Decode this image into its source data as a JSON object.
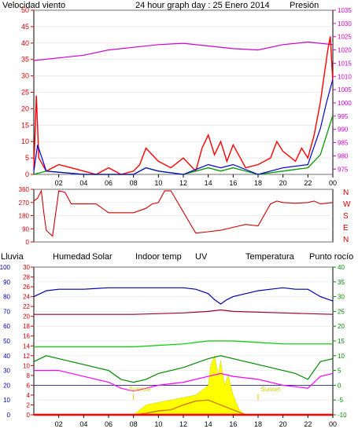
{
  "header": {
    "wind_label": "Velocidad viento",
    "title": "24 hour graph day : 25 Enero 2014",
    "pressure_label": "Presión"
  },
  "bottom_header": {
    "rain": "Lluvia",
    "humidity": "Humedad",
    "solar": "Solar",
    "indoor_temp": "Indoor temp",
    "uv": "UV",
    "temperature": "Temperatura",
    "dew_point": "Punto rocío"
  },
  "annotations": {
    "sunrise": "Sunrise",
    "sunset": "Sunset"
  },
  "colors": {
    "wind": "#ff0000",
    "gust_avg": "#0000cc",
    "green_wind": "#009900",
    "pressure": "#cc00cc",
    "direction": "#cc0000",
    "humidity": "#0000aa",
    "solar": "#00cc00",
    "indoor_temp": "#990033",
    "uv": "#cc6600",
    "temperature": "#008800",
    "dew_point": "#ff00ff",
    "rain": "#ff0000",
    "solar_fill": "#ffff00"
  },
  "chart_data": [
    {
      "type": "line",
      "title": "24 hour graph day : 25 Enero 2014",
      "x_ticks": [
        "02",
        "04",
        "06",
        "08",
        "10",
        "12",
        "14",
        "16",
        "18",
        "20",
        "22",
        "00"
      ],
      "x_hours": [
        2,
        4,
        6,
        8,
        10,
        12,
        14,
        16,
        18,
        20,
        22,
        24
      ],
      "x_range": [
        0,
        24
      ],
      "left_axis": {
        "label": "Velocidad viento",
        "ticks": [
          0,
          5,
          10,
          15,
          20,
          25,
          30,
          35,
          40,
          45,
          50
        ],
        "ylim": [
          0,
          50
        ]
      },
      "right_axis": {
        "label": "Presión",
        "ticks": [
          975,
          980,
          985,
          990,
          995,
          1000,
          1005,
          1010,
          1015,
          1020,
          1025,
          1030,
          1035
        ],
        "ylim": [
          973,
          1035
        ]
      },
      "series": [
        {
          "name": "Presión",
          "axis": "right",
          "x": [
            0,
            2,
            4,
            6,
            8,
            10,
            12,
            14,
            16,
            18,
            20,
            22,
            23,
            24
          ],
          "values": [
            1016,
            1017,
            1018,
            1020,
            1021,
            1022,
            1022.5,
            1021.5,
            1020.5,
            1020,
            1022,
            1023,
            1022.5,
            1022
          ]
        },
        {
          "axis": "left",
          "x": [
            0,
            0.2,
            0.4,
            1,
            2,
            3,
            4,
            5,
            6,
            7,
            8,
            8.5,
            9,
            10,
            11,
            12,
            13,
            13.5,
            14,
            14.5,
            15,
            15.5,
            16,
            17,
            18,
            19,
            19.5,
            20,
            21,
            21.5,
            22,
            22.5,
            23,
            23.3,
            23.6,
            23.8,
            24
          ],
          "values": [
            2,
            24,
            5,
            1,
            3,
            2,
            1,
            0,
            2,
            0,
            1,
            3,
            8,
            4,
            2,
            5,
            1,
            8,
            12,
            6,
            10,
            4,
            9,
            2,
            3,
            5,
            10,
            7,
            4,
            8,
            5,
            12,
            22,
            30,
            38,
            42,
            28
          ]
        },
        {
          "axis": "left",
          "x": [
            0,
            0.3,
            1,
            4,
            8,
            9,
            10,
            12,
            14,
            15,
            16,
            18,
            20,
            22,
            23,
            23.5,
            24
          ],
          "values": [
            1,
            9,
            1,
            0,
            0,
            2,
            1,
            0,
            3,
            2,
            3,
            0,
            2,
            3,
            14,
            22,
            29
          ]
        },
        {
          "axis": "left",
          "x": [
            0,
            1,
            4,
            8,
            9,
            10,
            12,
            14,
            15,
            16,
            18,
            20,
            22,
            23,
            23.5,
            24
          ],
          "values": [
            0,
            1,
            0,
            0,
            2,
            1,
            0,
            2,
            1,
            2,
            0,
            1,
            2,
            6,
            12,
            18
          ]
        }
      ]
    },
    {
      "type": "line",
      "y_ticks": [
        0,
        90,
        180,
        270,
        360
      ],
      "ylim": [
        0,
        360
      ],
      "direction_labels": [
        "N",
        "W",
        "S",
        "E",
        "N"
      ],
      "series": [
        {
          "axis": "left",
          "x": [
            0,
            0.3,
            0.6,
            0.8,
            1,
            1.5,
            2,
            2.5,
            3,
            5,
            6,
            8,
            9,
            9.5,
            10,
            10.5,
            11,
            13,
            14,
            15,
            16,
            17,
            18,
            19,
            19.5,
            20,
            21,
            22,
            22.5,
            23,
            24
          ],
          "values": [
            280,
            300,
            350,
            200,
            80,
            40,
            350,
            340,
            260,
            260,
            200,
            200,
            230,
            260,
            270,
            350,
            350,
            60,
            70,
            80,
            100,
            120,
            110,
            260,
            280,
            270,
            265,
            270,
            280,
            260,
            270
          ]
        }
      ]
    },
    {
      "type": "line",
      "x_ticks": [
        "02",
        "04",
        "06",
        "08",
        "10",
        "12",
        "14",
        "16",
        "18",
        "20",
        "22",
        "00"
      ],
      "x_hours": [
        2,
        4,
        6,
        8,
        10,
        12,
        14,
        16,
        18,
        20,
        22,
        24
      ],
      "x_range": [
        0,
        24
      ],
      "axes": {
        "humidity": {
          "label": "Humedad",
          "ticks": [
            0,
            10,
            20,
            30,
            40,
            50,
            60,
            70,
            80,
            90,
            100
          ],
          "ylim": [
            0,
            100
          ]
        },
        "rain": {
          "label": "Lluvia",
          "ticks": [
            0,
            2,
            4,
            6,
            8,
            10,
            12,
            14,
            16,
            18,
            20,
            22,
            24,
            26,
            28,
            30
          ],
          "ylim": [
            0,
            30
          ]
        },
        "temperature": {
          "label": "Temperatura",
          "ticks": [
            -10,
            -5,
            0,
            5,
            10,
            15,
            20,
            25,
            30,
            35,
            40
          ],
          "ylim": [
            -10,
            40
          ]
        }
      },
      "series": [
        {
          "name": "Humedad",
          "axis": "humidity",
          "x": [
            0,
            1,
            2,
            4,
            6,
            8,
            10,
            12,
            13,
            14,
            14.5,
            15,
            15.5,
            16,
            17,
            18,
            19,
            20,
            21,
            22,
            23,
            24
          ],
          "values": [
            80,
            84,
            85,
            85,
            86,
            86,
            86,
            86,
            85,
            82,
            78,
            75,
            78,
            80,
            82,
            84,
            85,
            86,
            85,
            85,
            80,
            77
          ]
        },
        {
          "name": "Solar",
          "axis": "temperature",
          "x": [
            0,
            4,
            8,
            10,
            12,
            14,
            16,
            18,
            20,
            22,
            24
          ],
          "values": [
            13,
            13,
            13,
            13.5,
            14,
            15,
            15,
            14.5,
            14,
            14,
            14
          ]
        },
        {
          "name": "Indoor temp",
          "axis": "temperature",
          "x": [
            0,
            4,
            8,
            12,
            14,
            15,
            16,
            20,
            24
          ],
          "values": [
            24,
            24,
            24,
            24.5,
            25,
            25.5,
            25,
            24.5,
            24
          ]
        },
        {
          "name": "Temperatura",
          "axis": "temperature",
          "x": [
            0,
            1,
            2,
            4,
            6,
            7,
            8,
            9,
            10,
            12,
            14,
            15,
            16,
            18,
            20,
            21,
            22,
            23,
            24
          ],
          "values": [
            8,
            10,
            9,
            7,
            5,
            2,
            1,
            2,
            4,
            6,
            9,
            10,
            9,
            7,
            5,
            4,
            2,
            8,
            9
          ]
        },
        {
          "name": "Punto rocío",
          "axis": "temperature",
          "x": [
            0,
            2,
            4,
            6,
            7,
            8,
            9,
            10,
            12,
            14,
            15,
            16,
            18,
            20,
            22,
            23,
            24
          ],
          "values": [
            5,
            5,
            3,
            1,
            -1,
            -2,
            -1,
            0,
            1,
            3,
            4,
            3,
            2,
            0,
            -1,
            3,
            4
          ]
        },
        {
          "name": "UV",
          "axis": "rain",
          "x": [
            8,
            9,
            10,
            11,
            12,
            13,
            14,
            15,
            16,
            17
          ],
          "values": [
            0,
            0.3,
            0.8,
            1,
            2,
            2.8,
            3,
            2,
            1,
            0
          ]
        },
        {
          "name": "Lluvia",
          "axis": "rain",
          "x": [
            0,
            24
          ],
          "values": [
            0,
            0
          ]
        }
      ],
      "solar_area": {
        "x": [
          8,
          8.5,
          9,
          10,
          11,
          12,
          13,
          13.5,
          14,
          14.2,
          14.5,
          14.8,
          15,
          15.3,
          15.6,
          16,
          16.5,
          17
        ],
        "values": [
          0,
          1,
          2,
          2.5,
          3,
          3.5,
          4,
          5,
          6,
          10,
          12,
          8,
          11,
          6,
          8,
          4,
          1,
          0
        ],
        "axis": "rain"
      }
    }
  ]
}
